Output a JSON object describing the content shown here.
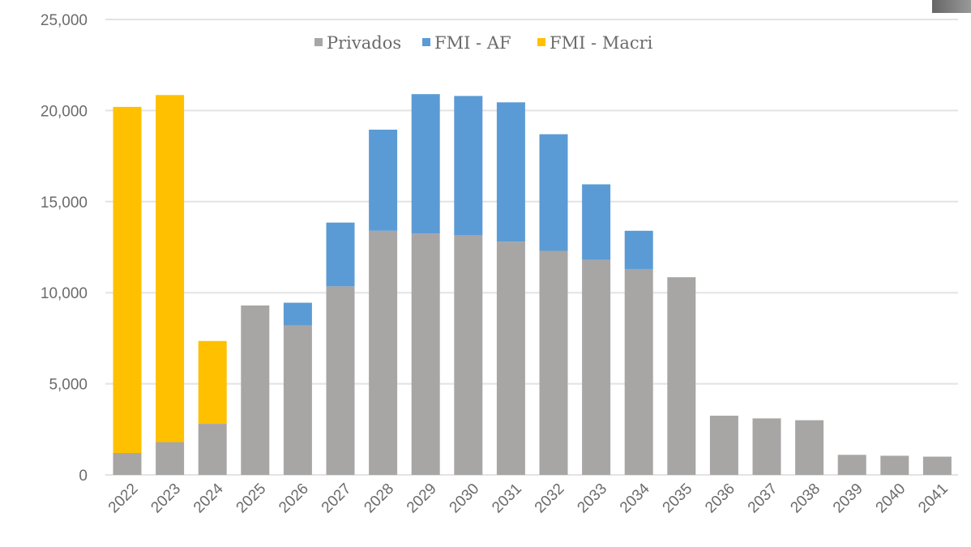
{
  "chart_data": {
    "type": "bar",
    "stacked": true,
    "title": "",
    "xlabel": "",
    "ylabel": "",
    "ylim": [
      0,
      25000
    ],
    "yticks": [
      0,
      5000,
      10000,
      15000,
      20000,
      25000
    ],
    "ytick_labels": [
      "0",
      "5,000",
      "10,000",
      "15,000",
      "20,000",
      "25,000"
    ],
    "grid": true,
    "legend_position": "top-center",
    "categories": [
      "2022",
      "2023",
      "2024",
      "2025",
      "2026",
      "2027",
      "2028",
      "2029",
      "2030",
      "2031",
      "2032",
      "2033",
      "2034",
      "2035",
      "2036",
      "2037",
      "2038",
      "2039",
      "2040",
      "2041"
    ],
    "series": [
      {
        "name": "Privados",
        "color": "#a8a5a5",
        "values": [
          1200,
          1800,
          2800,
          9300,
          8200,
          10350,
          13400,
          13250,
          13150,
          12800,
          12300,
          11800,
          11300,
          10850,
          3250,
          3100,
          3000,
          1100,
          1050,
          1000
        ]
      },
      {
        "name": "FMI - AF",
        "color": "#5b9bd5",
        "values": [
          0,
          0,
          0,
          0,
          1250,
          3500,
          5550,
          7650,
          7650,
          7650,
          6400,
          4150,
          2100,
          0,
          0,
          0,
          0,
          0,
          0,
          0
        ]
      },
      {
        "name": "FMI - Macri",
        "color": "#ffc000",
        "values": [
          19000,
          19050,
          4550,
          0,
          0,
          0,
          0,
          0,
          0,
          0,
          0,
          0,
          0,
          0,
          0,
          0,
          0,
          0,
          0,
          0
        ]
      }
    ]
  }
}
